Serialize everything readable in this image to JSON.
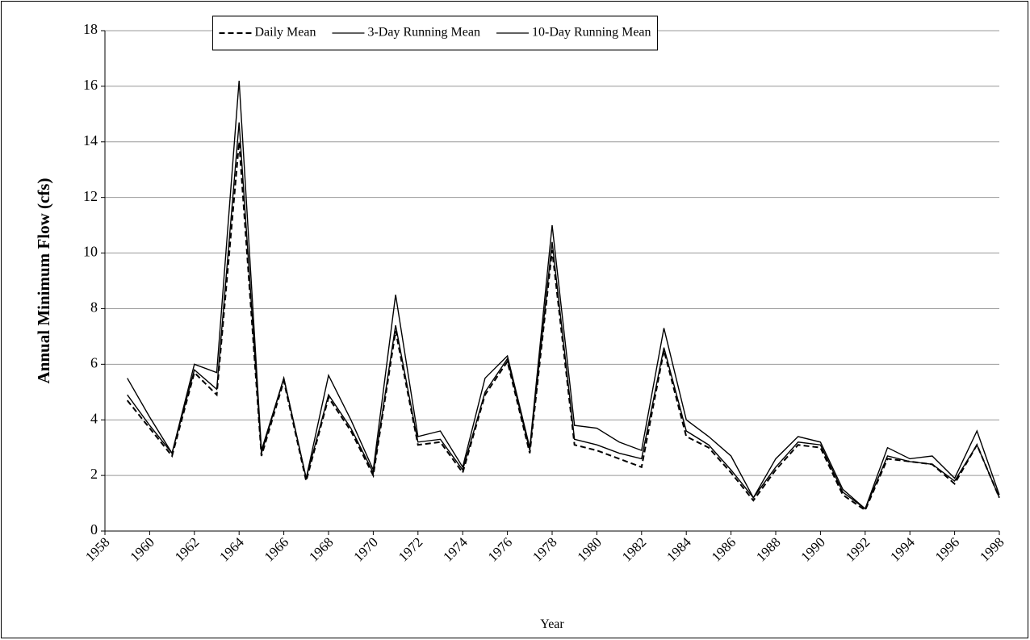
{
  "chart_data": {
    "type": "line",
    "x_label": "Year",
    "y_label": "Annual Minimum Flow (cfs)",
    "x": [
      1959,
      1960,
      1961,
      1962,
      1963,
      1964,
      1965,
      1966,
      1967,
      1968,
      1969,
      1970,
      1971,
      1972,
      1973,
      1974,
      1975,
      1976,
      1977,
      1978,
      1979,
      1980,
      1981,
      1982,
      1983,
      1984,
      1985,
      1986,
      1987,
      1988,
      1989,
      1990,
      1991,
      1992,
      1993,
      1994,
      1995,
      1996,
      1997,
      1998
    ],
    "series": [
      {
        "name": "Daily Mean",
        "color": "#000000",
        "dashed": true,
        "values": [
          4.7,
          3.7,
          2.7,
          5.7,
          4.9,
          14.0,
          2.7,
          5.4,
          1.8,
          4.8,
          3.6,
          2.0,
          7.2,
          3.1,
          3.2,
          2.1,
          4.9,
          6.1,
          2.8,
          10.1,
          3.1,
          2.9,
          2.6,
          2.3,
          6.5,
          3.4,
          3.0,
          2.1,
          1.1,
          2.2,
          3.1,
          3.0,
          1.3,
          0.75,
          2.6,
          2.5,
          2.4,
          1.7,
          3.1,
          1.2
        ]
      },
      {
        "name": "3-Day Running Mean",
        "color": "#000000",
        "values": [
          4.9,
          3.8,
          2.8,
          5.8,
          5.1,
          14.7,
          2.8,
          5.5,
          1.9,
          4.9,
          3.7,
          2.1,
          7.4,
          3.2,
          3.3,
          2.2,
          5.0,
          6.2,
          2.9,
          10.4,
          3.3,
          3.1,
          2.8,
          2.6,
          6.6,
          3.6,
          3.1,
          2.2,
          1.2,
          2.3,
          3.2,
          3.1,
          1.4,
          0.8,
          2.7,
          2.5,
          2.4,
          1.8,
          3.1,
          1.2
        ]
      },
      {
        "name": "10-Day Running Mean",
        "color": "#000000",
        "values": [
          5.5,
          4.1,
          2.8,
          6.0,
          5.7,
          16.2,
          2.9,
          5.5,
          1.9,
          5.6,
          4.0,
          2.2,
          8.5,
          3.4,
          3.6,
          2.3,
          5.5,
          6.3,
          3.0,
          11.0,
          3.8,
          3.7,
          3.2,
          2.9,
          7.3,
          4.0,
          3.4,
          2.7,
          1.2,
          2.6,
          3.4,
          3.2,
          1.5,
          0.8,
          3.0,
          2.6,
          2.7,
          1.9,
          3.6,
          1.3
        ]
      }
    ],
    "xlim": [
      1958,
      1998
    ],
    "xticks": [
      1958,
      1960,
      1962,
      1964,
      1966,
      1968,
      1970,
      1972,
      1974,
      1976,
      1978,
      1980,
      1982,
      1984,
      1986,
      1988,
      1990,
      1992,
      1994,
      1996,
      1998
    ],
    "ylim": [
      0,
      18
    ],
    "yticks": [
      0,
      2,
      4,
      6,
      8,
      10,
      12,
      14,
      16,
      18
    ],
    "grid": true,
    "legend": "top"
  }
}
